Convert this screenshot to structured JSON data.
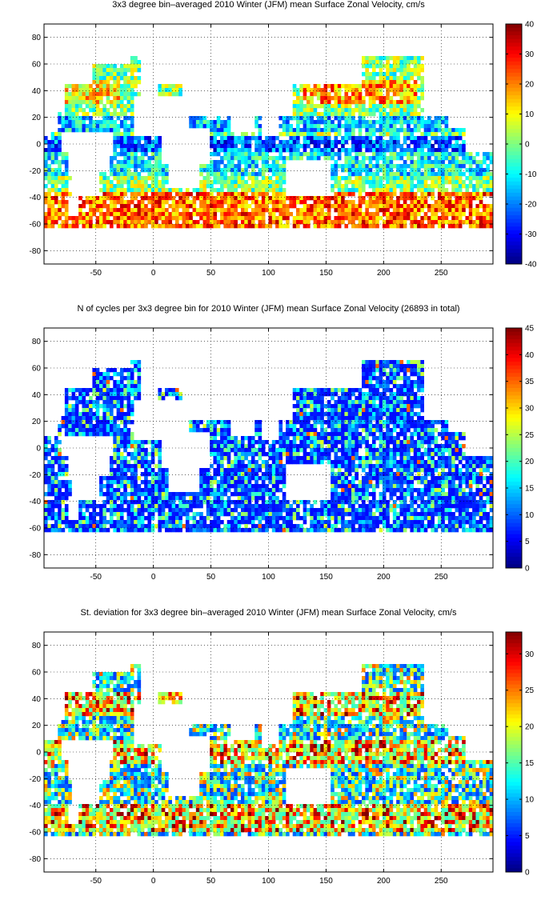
{
  "chart_data": [
    {
      "type": "heatmap",
      "title": "3x3 degree bin–averaged 2010 Winter (JFM) mean Surface Zonal Velocity, cm/s",
      "xlabel": "",
      "ylabel": "",
      "xlim": [
        -95,
        295
      ],
      "ylim": [
        -90,
        90
      ],
      "xticks": [
        -50,
        0,
        50,
        100,
        150,
        200,
        250
      ],
      "yticks": [
        80,
        60,
        40,
        20,
        0,
        -20,
        -40,
        -60,
        -80
      ],
      "colorbar": {
        "min": -40,
        "max": 40,
        "ticks": [
          40,
          30,
          20,
          10,
          0,
          -10,
          -20,
          -30,
          -40
        ],
        "colormap": "jet"
      },
      "grid": true
    },
    {
      "type": "heatmap",
      "title": "N of cycles per 3x3 degree bin for 2010 Winter (JFM) mean Surface Zonal Velocity (26893 in total)",
      "xlabel": "",
      "ylabel": "",
      "xlim": [
        -95,
        295
      ],
      "ylim": [
        -90,
        90
      ],
      "xticks": [
        -50,
        0,
        50,
        100,
        150,
        200,
        250
      ],
      "yticks": [
        80,
        60,
        40,
        20,
        0,
        -20,
        -40,
        -60,
        -80
      ],
      "colorbar": {
        "min": 0,
        "max": 45,
        "ticks": [
          45,
          40,
          35,
          30,
          25,
          20,
          15,
          10,
          5,
          0
        ],
        "colormap": "jet"
      },
      "grid": true
    },
    {
      "type": "heatmap",
      "title": "St. deviation for 3x3 degree bin–averaged 2010 Winter (JFM) mean Surface Zonal Velocity, cm/s",
      "xlabel": "",
      "ylabel": "",
      "xlim": [
        -95,
        295
      ],
      "ylim": [
        -90,
        90
      ],
      "xticks": [
        -50,
        0,
        50,
        100,
        150,
        200,
        250
      ],
      "yticks": [
        80,
        60,
        40,
        20,
        0,
        -20,
        -40,
        -60,
        -80
      ],
      "colorbar": {
        "min": 0,
        "max": 33,
        "ticks": [
          30,
          25,
          20,
          15,
          10,
          5,
          0
        ],
        "colormap": "jet"
      },
      "grid": true
    }
  ]
}
